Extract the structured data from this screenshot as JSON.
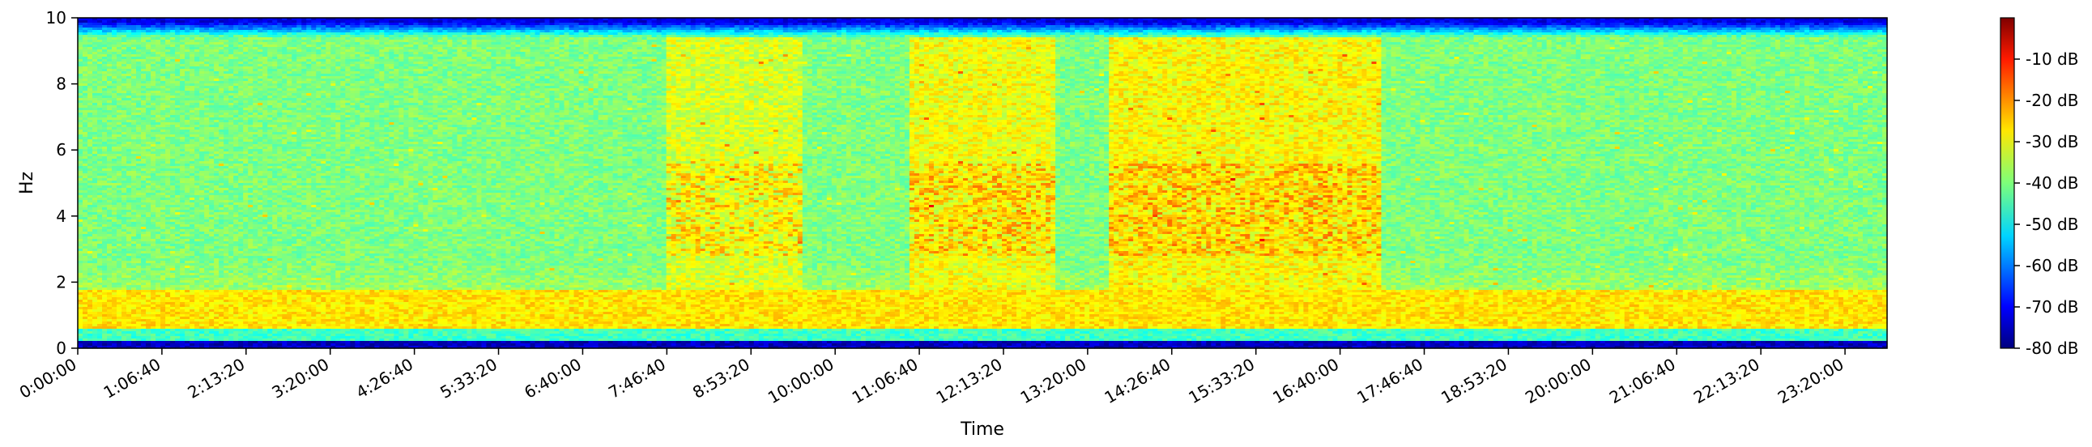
{
  "chart_data": {
    "type": "heatmap",
    "title": "",
    "xlabel": "Time",
    "ylabel": "Hz",
    "x_tick_labels": [
      "0:00:00",
      "1:06:40",
      "2:13:20",
      "3:20:00",
      "4:26:40",
      "5:33:20",
      "6:40:00",
      "7:46:40",
      "8:53:20",
      "10:00:00",
      "11:06:40",
      "12:13:20",
      "13:20:00",
      "14:26:40",
      "15:33:20",
      "16:40:00",
      "17:46:40",
      "18:53:20",
      "20:00:00",
      "21:06:40",
      "22:13:20",
      "23:20:00"
    ],
    "x_tick_seconds": [
      0,
      4000,
      8000,
      12000,
      16000,
      20000,
      24000,
      28000,
      32000,
      36000,
      40000,
      44000,
      48000,
      52000,
      56000,
      60000,
      64000,
      68000,
      72000,
      76000,
      80000,
      84000
    ],
    "xlim_seconds": [
      0,
      86000
    ],
    "y_ticks": [
      0,
      2,
      4,
      6,
      8,
      10
    ],
    "ylim": [
      0,
      10
    ],
    "colorbar": {
      "colormap": "jet",
      "range_db": [
        -80,
        0
      ],
      "tick_values": [
        -10,
        -20,
        -30,
        -40,
        -50,
        -60,
        -70,
        -80
      ],
      "tick_labels": [
        "-10 dB",
        "-20 dB",
        "-30 dB",
        "-40 dB",
        "-50 dB",
        "-60 dB",
        "-70 dB",
        "-80 dB"
      ]
    },
    "intensity_summary": {
      "background_db": -40,
      "band_0p6_to_1p8_hz_db": -28,
      "band_0p3_to_0p6_hz_db": -45,
      "band_below_0p2_hz_db": -75,
      "top_edge_9p4_to_10_hz_db": -72,
      "active_periods": [
        {
          "start_seconds": 28000,
          "end_seconds": 34500,
          "level_db": -33
        },
        {
          "start_seconds": 39500,
          "end_seconds": 46500,
          "level_db": -31
        },
        {
          "start_seconds": 49000,
          "end_seconds": 62000,
          "level_db": -30
        }
      ]
    }
  }
}
